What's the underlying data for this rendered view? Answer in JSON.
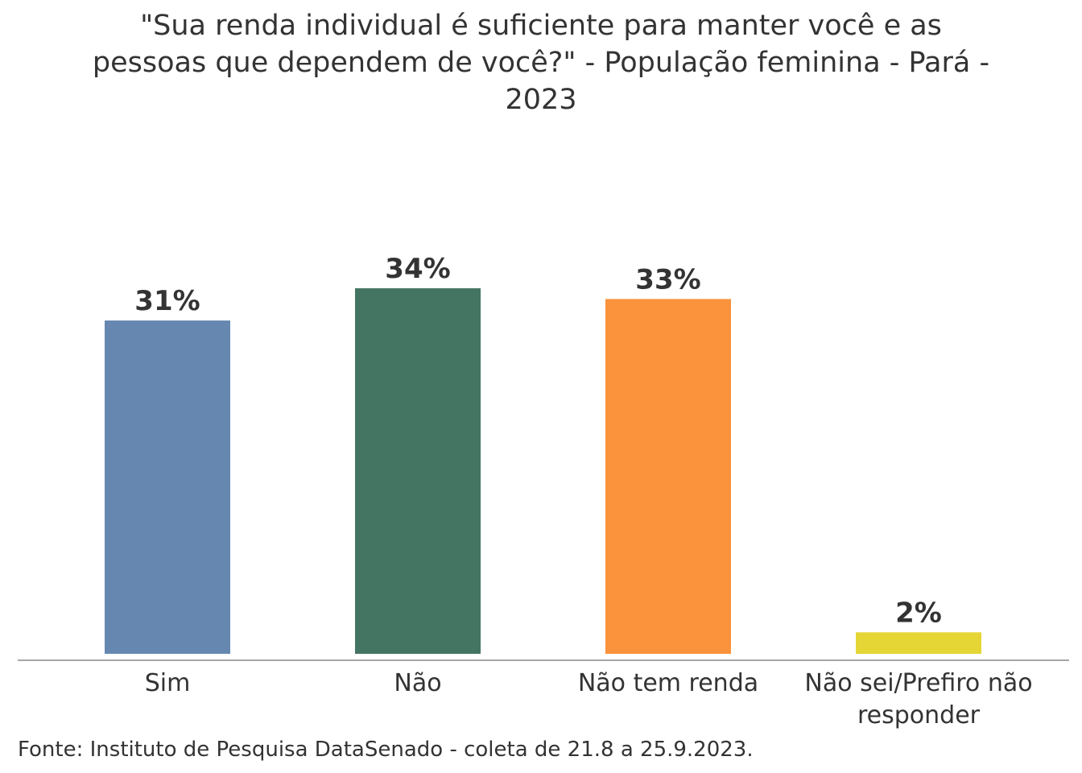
{
  "chart_data": {
    "type": "bar",
    "title_lines": [
      "\"Sua renda individual é suficiente para manter você e as",
      "pessoas que dependem de você?\" - População feminina - Pará -",
      "2023"
    ],
    "categories": [
      [
        "Sim"
      ],
      [
        "Não"
      ],
      [
        "Não tem renda"
      ],
      [
        "Não sei/Prefiro não",
        "responder"
      ]
    ],
    "values": [
      31,
      34,
      33,
      2
    ],
    "data_labels": [
      "31%",
      "34%",
      "33%",
      "2%"
    ],
    "colors": [
      "#6688B0",
      "#447563",
      "#FB923C",
      "#E5D636"
    ],
    "xlabel": "",
    "ylabel": "",
    "ylim": [
      0,
      34
    ],
    "grid": false,
    "legend": "none",
    "source": "Fonte: Instituto de Pesquisa DataSenado - coleta de 21.8 a 25.9.2023."
  }
}
